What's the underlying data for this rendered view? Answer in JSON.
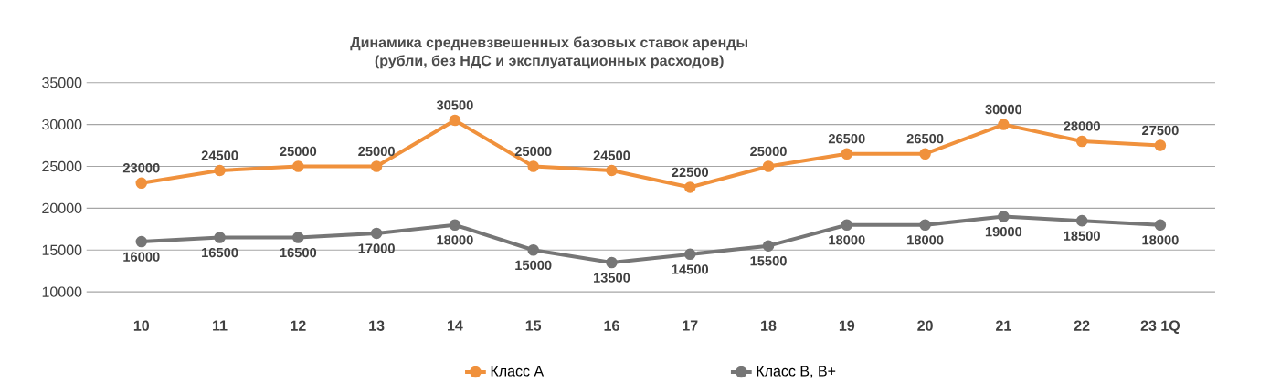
{
  "chart_data": {
    "type": "line",
    "title": "Динамика средневзвешенных базовых ставок аренды",
    "subtitle": "(рубли, без НДС и эксплуатационных расходов)",
    "categories": [
      "10",
      "11",
      "12",
      "13",
      "14",
      "15",
      "16",
      "17",
      "18",
      "19",
      "20",
      "21",
      "22",
      "23 1Q"
    ],
    "series": [
      {
        "name": "Класс А",
        "color": "#f0913c",
        "values": [
          23000,
          24500,
          25000,
          25000,
          30500,
          25000,
          24500,
          22500,
          25000,
          26500,
          26500,
          30000,
          28000,
          27500
        ]
      },
      {
        "name": "Класс В, В+",
        "color": "#767676",
        "values": [
          16000,
          16500,
          16500,
          17000,
          18000,
          15000,
          13500,
          14500,
          15500,
          18000,
          18000,
          19000,
          18500,
          18000
        ]
      }
    ],
    "ylim": [
      10000,
      35000
    ],
    "yticks": [
      10000,
      15000,
      20000,
      25000,
      30000,
      35000
    ],
    "grid": "y",
    "legend": "bottom",
    "marker": "circle",
    "line_style": "solid",
    "data_labels": true
  }
}
